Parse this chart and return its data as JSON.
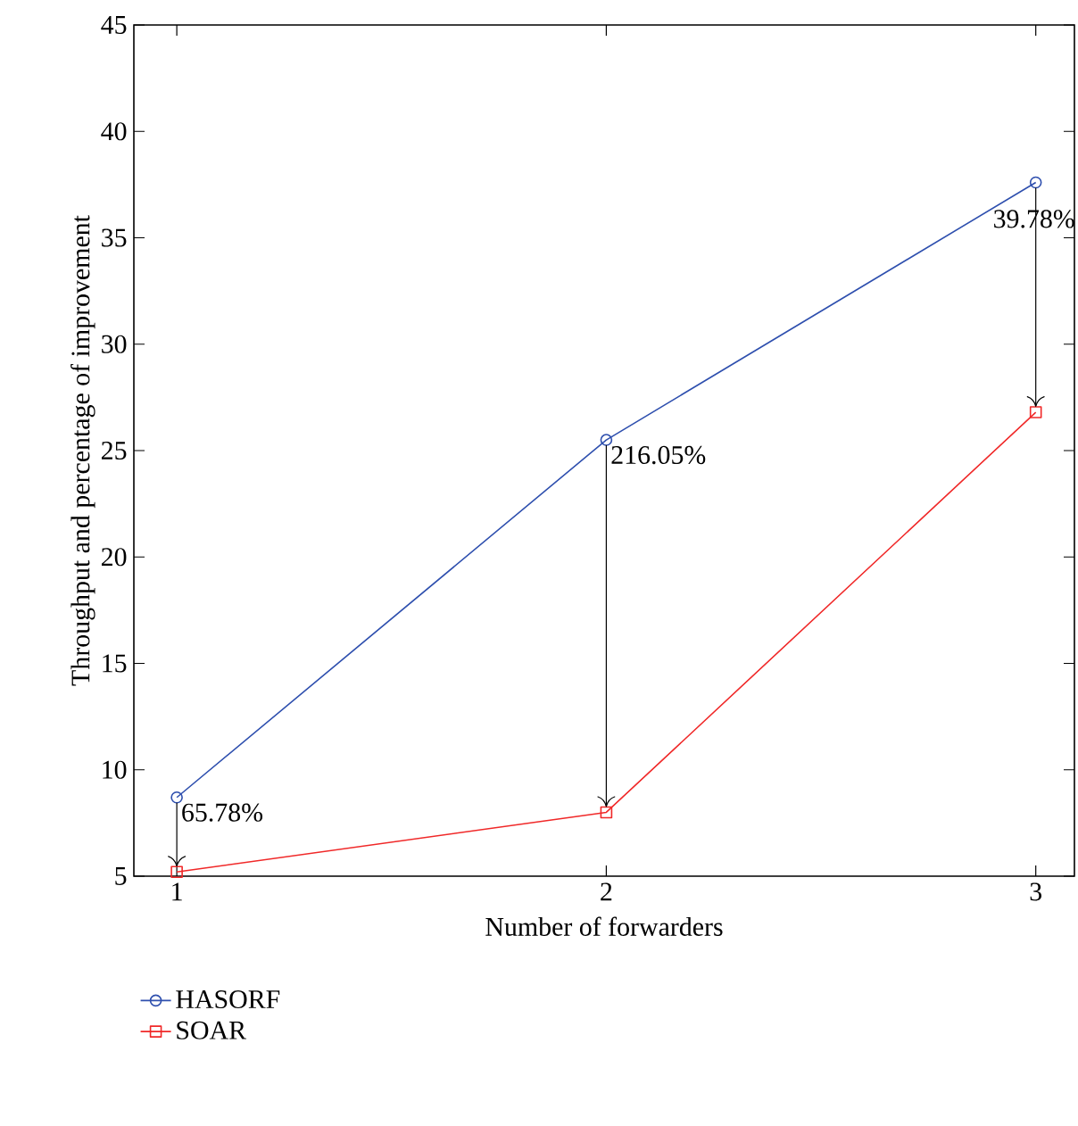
{
  "chart_data": {
    "type": "line",
    "xlabel": "Number of forwarders",
    "ylabel": "Throughput and percentage of improvement",
    "x": [
      1,
      2,
      3
    ],
    "xlim": [
      0.9,
      3.09
    ],
    "xticks": [
      1,
      2,
      3
    ],
    "ylim": [
      5,
      45
    ],
    "yticks": [
      5,
      10,
      15,
      20,
      25,
      30,
      35,
      40,
      45
    ],
    "series": [
      {
        "name": "HASORF",
        "color": "#2e4fae",
        "marker": "circle",
        "values": [
          8.7,
          25.5,
          37.6
        ]
      },
      {
        "name": "SOAR",
        "color": "#f02828",
        "marker": "square",
        "values": [
          5.2,
          8.0,
          26.8
        ]
      }
    ],
    "annotations": [
      {
        "text": "65.78%",
        "x": 1,
        "y": 8.7
      },
      {
        "text": "216.05%",
        "x": 2,
        "y": 25.5
      },
      {
        "text": "39.78%",
        "x": 3,
        "y": 37.6
      }
    ],
    "legend": "bottom left",
    "grid": false
  }
}
